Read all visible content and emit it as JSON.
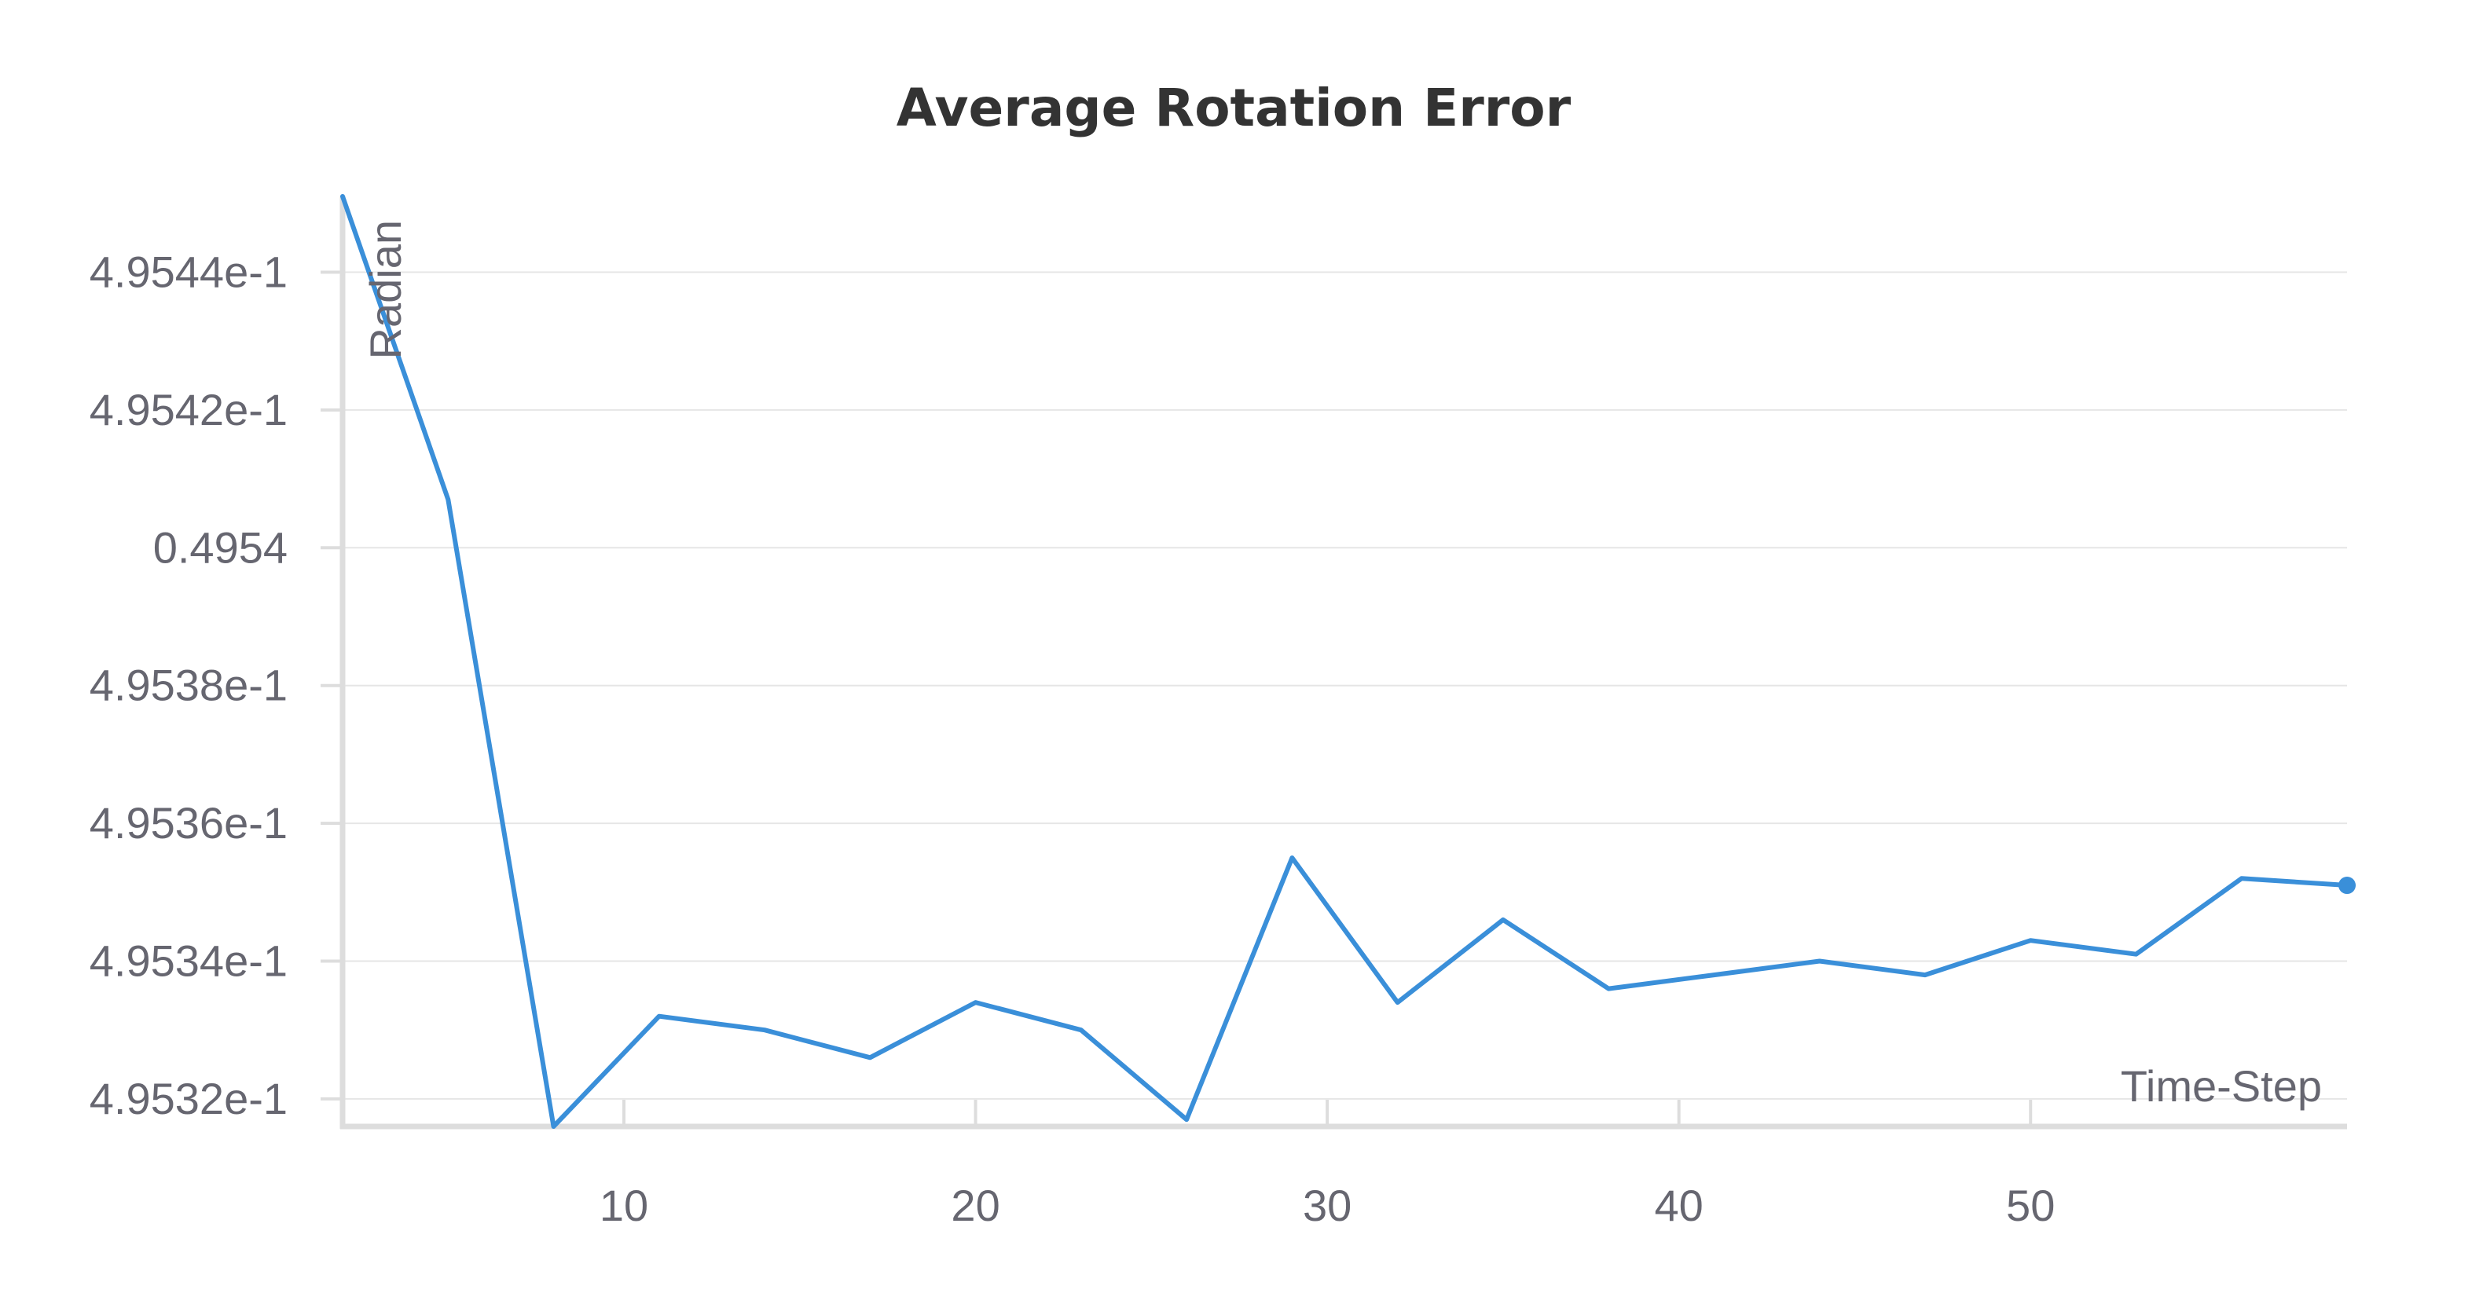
{
  "chart_data": {
    "type": "line",
    "title": "Average Rotation Error",
    "xlabel": "Time-Step",
    "ylabel": "Radian",
    "xlim": [
      2,
      59
    ],
    "ylim": [
      0.495316,
      0.495451
    ],
    "x_ticks": [
      10,
      20,
      30,
      40,
      50
    ],
    "x_tick_labels": [
      "10",
      "20",
      "30",
      "40",
      "50"
    ],
    "y_ticks": [
      0.49532,
      0.49534,
      0.49536,
      0.49538,
      0.4954,
      0.49542,
      0.49544
    ],
    "y_tick_labels": [
      "4.9532e-1",
      "4.9534e-1",
      "4.9536e-1",
      "4.9538e-1",
      "0.4954",
      "4.9542e-1",
      "4.9544e-1"
    ],
    "grid": true,
    "series": [
      {
        "color": "#3a8fd9",
        "x": [
          2,
          5,
          8,
          11,
          14,
          17,
          20,
          23,
          26,
          29,
          32,
          35,
          38,
          41,
          44,
          47,
          50,
          53,
          56,
          59
        ],
        "y": [
          0.495451,
          0.495407,
          0.495316,
          0.495332,
          0.49533,
          0.495326,
          0.495334,
          0.49533,
          0.495317,
          0.495355,
          0.495334,
          0.495346,
          0.495336,
          0.495338,
          0.49534,
          0.495338,
          0.495343,
          0.495341,
          0.495352,
          0.495351
        ]
      }
    ]
  }
}
